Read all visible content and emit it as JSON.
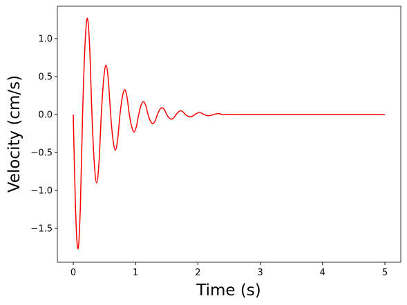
{
  "chart_data": {
    "type": "line",
    "xlabel": "Time (s)",
    "ylabel": "Velocity (cm/s)",
    "x": [
      0,
      0.0375,
      0.075,
      0.1125,
      0.15,
      0.1875,
      0.225,
      0.2625,
      0.3,
      0.3375,
      0.375,
      0.4125,
      0.45,
      0.4875,
      0.525,
      0.5625,
      0.6,
      0.6375,
      0.675,
      0.7125,
      0.75,
      0.7875,
      0.825,
      0.8625,
      0.9,
      0.9375,
      0.975,
      1.0125,
      1.05,
      1.0875,
      1.125,
      1.1625,
      1.2,
      1.2375,
      1.275,
      1.3125,
      1.35,
      1.3875,
      1.425,
      1.4625,
      1.5,
      1.5375,
      1.575,
      1.6125,
      1.65,
      1.6875,
      1.725,
      1.7625,
      1.8,
      1.8375,
      1.875,
      1.9125,
      1.95,
      1.9875,
      2.025,
      2.0625,
      2.1,
      2.1375,
      2.175,
      2.2125,
      2.25,
      2.2875,
      2.325,
      2.3625,
      2.4,
      2.7,
      3.0,
      3.5,
      4.0,
      4.5,
      5.0
    ],
    "series": [
      {
        "name": "Velocity",
        "color": "#ff0000",
        "values": [
          0,
          -1.26,
          -1.77,
          -1.26,
          0,
          0.9,
          1.27,
          0.9,
          0,
          -0.64,
          -0.9,
          -0.64,
          0,
          0.46,
          0.65,
          0.46,
          0,
          -0.33,
          -0.47,
          -0.33,
          0,
          0.23,
          0.33,
          0.23,
          0,
          -0.16,
          -0.23,
          -0.16,
          0,
          0.12,
          0.17,
          0.12,
          0,
          -0.085,
          -0.12,
          -0.085,
          0,
          0.064,
          0.09,
          0.064,
          0,
          -0.043,
          -0.06,
          -0.043,
          0,
          0.035,
          0.05,
          0.035,
          0,
          -0.021,
          -0.03,
          -0.021,
          0,
          0.018,
          0.025,
          0.018,
          0,
          -0.011,
          -0.015,
          -0.011,
          0,
          0.0085,
          0.012,
          0.0085,
          0,
          0,
          0,
          0,
          0,
          0,
          0
        ]
      }
    ],
    "xlim": [
      -0.255,
      5.255
    ],
    "xticks": [
      0,
      1,
      2,
      3,
      4,
      5
    ],
    "ylim": [
      -1.945,
      1.427
    ],
    "yticks": [
      {
        "value": -1.5,
        "label": "−1.5"
      },
      {
        "value": -1.0,
        "label": "−1.0"
      },
      {
        "value": -0.5,
        "label": "−0.5"
      },
      {
        "value": 0,
        "label": "0.0"
      },
      {
        "value": 0.5,
        "label": "0.5"
      },
      {
        "value": 1.0,
        "label": "1.0"
      }
    ],
    "grid": false
  }
}
